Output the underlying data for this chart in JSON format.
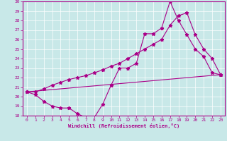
{
  "xlabel": "Windchill (Refroidissement éolien,°C)",
  "bg_color": "#c8e8e8",
  "line_color": "#aa0088",
  "xlim_min": -0.5,
  "xlim_max": 23.5,
  "ylim_min": 18,
  "ylim_max": 30,
  "yticks": [
    18,
    19,
    20,
    21,
    22,
    23,
    24,
    25,
    26,
    27,
    28,
    29,
    30
  ],
  "xticks": [
    0,
    1,
    2,
    3,
    4,
    5,
    6,
    7,
    8,
    9,
    10,
    11,
    12,
    13,
    14,
    15,
    16,
    17,
    18,
    19,
    20,
    21,
    22,
    23
  ],
  "curve1_x": [
    0,
    1,
    2,
    3,
    4,
    5,
    6,
    7,
    8,
    9,
    10,
    11,
    12,
    13,
    14,
    15,
    16,
    17,
    18,
    19,
    20,
    21,
    22,
    23
  ],
  "curve1_y": [
    20.5,
    20.2,
    19.5,
    19.0,
    18.8,
    18.8,
    18.2,
    17.8,
    17.8,
    19.2,
    21.2,
    23.0,
    23.0,
    23.5,
    26.6,
    26.6,
    27.2,
    30.0,
    28.0,
    26.5,
    25.0,
    24.2,
    22.5,
    22.3
  ],
  "curve2_x": [
    0,
    1,
    2,
    3,
    4,
    5,
    6,
    7,
    8,
    9,
    10,
    11,
    12,
    13,
    14,
    15,
    16,
    17,
    18,
    19,
    20,
    21,
    22,
    23
  ],
  "curve2_y": [
    20.5,
    20.5,
    20.8,
    21.2,
    21.5,
    21.8,
    22.0,
    22.2,
    22.5,
    22.8,
    23.2,
    23.5,
    24.0,
    24.5,
    25.0,
    25.5,
    26.0,
    27.5,
    28.5,
    28.8,
    26.5,
    25.0,
    24.0,
    22.3
  ],
  "curve3_x": [
    0,
    23
  ],
  "curve3_y": [
    20.5,
    22.3
  ]
}
